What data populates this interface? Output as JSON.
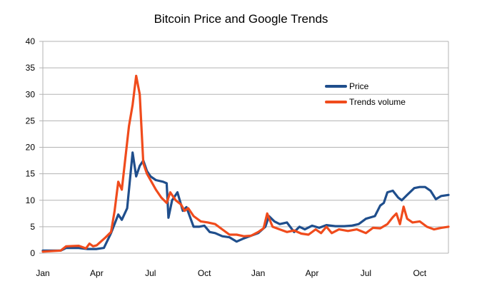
{
  "chart_data": {
    "type": "line",
    "title": "Bitcoin Price and Google Trends",
    "xlabel": "",
    "ylabel": "",
    "ylim": [
      0,
      40
    ],
    "xlim": [
      0,
      22.6
    ],
    "yticks": [
      0,
      5,
      10,
      15,
      20,
      25,
      30,
      35,
      40
    ],
    "xtick_labels": [
      {
        "label": "Jan",
        "x": 0
      },
      {
        "label": "Apr",
        "x": 3
      },
      {
        "label": "Jul",
        "x": 6
      },
      {
        "label": "Oct",
        "x": 9
      },
      {
        "label": "Jan",
        "x": 12
      },
      {
        "label": "Apr",
        "x": 15
      },
      {
        "label": "Jul",
        "x": 18
      },
      {
        "label": "Oct",
        "x": 21
      }
    ],
    "grid": "horizontal",
    "legend_position": "top-right",
    "series": [
      {
        "name": "Price",
        "color": "#1f4e8c",
        "points": [
          [
            0.0,
            0.5
          ],
          [
            0.6,
            0.5
          ],
          [
            1.0,
            0.5
          ],
          [
            1.3,
            1.0
          ],
          [
            2.0,
            1.0
          ],
          [
            2.5,
            0.8
          ],
          [
            3.0,
            0.8
          ],
          [
            3.4,
            1.0
          ],
          [
            3.8,
            3.8
          ],
          [
            4.2,
            7.3
          ],
          [
            4.4,
            6.3
          ],
          [
            4.7,
            8.5
          ],
          [
            5.0,
            19.0
          ],
          [
            5.2,
            14.5
          ],
          [
            5.4,
            16.5
          ],
          [
            5.6,
            17.5
          ],
          [
            5.8,
            15.5
          ],
          [
            6.0,
            14.5
          ],
          [
            6.3,
            13.8
          ],
          [
            6.7,
            13.5
          ],
          [
            6.9,
            13.2
          ],
          [
            7.0,
            6.7
          ],
          [
            7.2,
            10.0
          ],
          [
            7.5,
            11.5
          ],
          [
            7.8,
            8.0
          ],
          [
            8.0,
            8.7
          ],
          [
            8.4,
            5.0
          ],
          [
            8.7,
            5.0
          ],
          [
            9.0,
            5.2
          ],
          [
            9.3,
            4.0
          ],
          [
            9.6,
            3.8
          ],
          [
            10.0,
            3.2
          ],
          [
            10.4,
            3.0
          ],
          [
            10.8,
            2.2
          ],
          [
            11.2,
            2.8
          ],
          [
            11.6,
            3.3
          ],
          [
            12.0,
            3.8
          ],
          [
            12.4,
            5.0
          ],
          [
            12.6,
            7.0
          ],
          [
            12.9,
            6.0
          ],
          [
            13.2,
            5.5
          ],
          [
            13.6,
            5.8
          ],
          [
            14.0,
            4.0
          ],
          [
            14.3,
            5.0
          ],
          [
            14.6,
            4.5
          ],
          [
            15.0,
            5.2
          ],
          [
            15.4,
            4.8
          ],
          [
            15.8,
            5.3
          ],
          [
            16.3,
            5.1
          ],
          [
            16.8,
            5.1
          ],
          [
            17.2,
            5.2
          ],
          [
            17.6,
            5.5
          ],
          [
            18.0,
            6.5
          ],
          [
            18.5,
            7.0
          ],
          [
            18.8,
            9.0
          ],
          [
            19.0,
            9.5
          ],
          [
            19.2,
            11.5
          ],
          [
            19.5,
            11.8
          ],
          [
            19.8,
            10.5
          ],
          [
            20.0,
            10.0
          ],
          [
            20.3,
            11.0
          ],
          [
            20.7,
            12.3
          ],
          [
            21.0,
            12.5
          ],
          [
            21.3,
            12.5
          ],
          [
            21.6,
            11.8
          ],
          [
            21.9,
            10.2
          ],
          [
            22.2,
            10.8
          ],
          [
            22.6,
            11.0
          ]
        ]
      },
      {
        "name": "Trends volume",
        "color": "#f04b1c",
        "points": [
          [
            0.0,
            0.3
          ],
          [
            1.0,
            0.5
          ],
          [
            1.3,
            1.3
          ],
          [
            2.0,
            1.4
          ],
          [
            2.4,
            0.9
          ],
          [
            2.6,
            1.8
          ],
          [
            2.8,
            1.3
          ],
          [
            3.0,
            1.5
          ],
          [
            3.5,
            3.0
          ],
          [
            3.8,
            4.0
          ],
          [
            4.0,
            8.0
          ],
          [
            4.2,
            13.5
          ],
          [
            4.4,
            12.0
          ],
          [
            4.6,
            18.0
          ],
          [
            4.8,
            24.0
          ],
          [
            5.0,
            28.0
          ],
          [
            5.2,
            33.5
          ],
          [
            5.4,
            30.0
          ],
          [
            5.6,
            17.0
          ],
          [
            5.8,
            15.0
          ],
          [
            6.0,
            13.8
          ],
          [
            6.3,
            12.0
          ],
          [
            6.6,
            10.5
          ],
          [
            6.9,
            9.5
          ],
          [
            7.1,
            11.5
          ],
          [
            7.4,
            10.0
          ],
          [
            7.7,
            9.2
          ],
          [
            7.9,
            8.0
          ],
          [
            8.1,
            8.5
          ],
          [
            8.4,
            7.0
          ],
          [
            8.8,
            6.0
          ],
          [
            9.2,
            5.8
          ],
          [
            9.6,
            5.5
          ],
          [
            10.0,
            4.5
          ],
          [
            10.4,
            3.5
          ],
          [
            10.8,
            3.5
          ],
          [
            11.2,
            3.2
          ],
          [
            11.6,
            3.3
          ],
          [
            12.0,
            4.0
          ],
          [
            12.3,
            4.7
          ],
          [
            12.5,
            7.5
          ],
          [
            12.8,
            5.0
          ],
          [
            13.2,
            4.5
          ],
          [
            13.6,
            4.0
          ],
          [
            14.0,
            4.3
          ],
          [
            14.4,
            3.7
          ],
          [
            14.8,
            3.5
          ],
          [
            15.2,
            4.5
          ],
          [
            15.5,
            3.8
          ],
          [
            15.8,
            5.0
          ],
          [
            16.1,
            3.8
          ],
          [
            16.5,
            4.5
          ],
          [
            17.0,
            4.2
          ],
          [
            17.5,
            4.5
          ],
          [
            18.0,
            3.8
          ],
          [
            18.4,
            4.8
          ],
          [
            18.8,
            4.7
          ],
          [
            19.2,
            5.5
          ],
          [
            19.5,
            6.8
          ],
          [
            19.7,
            7.5
          ],
          [
            19.9,
            5.5
          ],
          [
            20.1,
            8.8
          ],
          [
            20.3,
            6.5
          ],
          [
            20.6,
            5.8
          ],
          [
            21.0,
            6.0
          ],
          [
            21.4,
            5.0
          ],
          [
            21.8,
            4.5
          ],
          [
            22.2,
            4.8
          ],
          [
            22.6,
            5.0
          ]
        ]
      }
    ]
  }
}
